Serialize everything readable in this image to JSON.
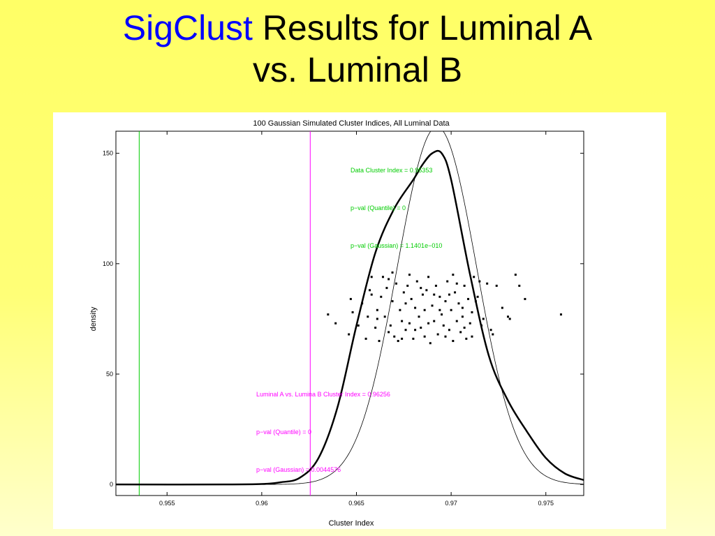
{
  "slide": {
    "title_accent": "SigClust",
    "title_rest_line1": " Results for Luminal A",
    "title_line2": "vs. Luminal B"
  },
  "colors": {
    "title_accent": "#0000ff",
    "data_annotation": "#00cc00",
    "luminal_annotation": "#ff00ff",
    "curve": "#000000"
  },
  "chart_data": {
    "type": "line",
    "title": "100 Gaussian Simulated Cluster Indices, All Luminal Data",
    "xlabel": "Cluster Index",
    "ylabel": "density",
    "xlim": [
      0.9523,
      0.977
    ],
    "ylim": [
      -5,
      160
    ],
    "xticks": [
      0.955,
      0.96,
      0.965,
      0.97,
      0.975
    ],
    "xtick_labels": [
      "0.955",
      "0.96",
      "0.965",
      "0.97",
      "0.975"
    ],
    "yticks": [
      0,
      50,
      100,
      150
    ],
    "ytick_labels": [
      "0",
      "50",
      "100",
      "150"
    ],
    "grid": false,
    "series": [
      {
        "kind": "kde",
        "x": [
          0.9523,
          0.958,
          0.96,
          0.961,
          0.962,
          0.963,
          0.964,
          0.965,
          0.966,
          0.967,
          0.968,
          0.9685,
          0.969,
          0.9695,
          0.97,
          0.971,
          0.972,
          0.973,
          0.974,
          0.975,
          0.976,
          0.977
        ],
        "y": [
          0,
          0,
          0.2,
          1,
          3,
          12,
          35,
          72,
          105,
          125,
          138,
          145,
          150,
          150,
          138,
          95,
          58,
          38,
          24,
          12,
          5,
          2
        ]
      },
      {
        "kind": "gaussian_fit",
        "mean": 0.96925,
        "sd": 0.0021,
        "peak": 162
      }
    ],
    "vlines": [
      {
        "x": 0.95353,
        "color": "#00cc00"
      },
      {
        "x": 0.96256,
        "color": "#ff00ff"
      }
    ],
    "points": [
      {
        "x": 0.9635,
        "y": 77
      },
      {
        "x": 0.9639,
        "y": 73
      },
      {
        "x": 0.9646,
        "y": 68
      },
      {
        "x": 0.9647,
        "y": 84
      },
      {
        "x": 0.9651,
        "y": 72
      },
      {
        "x": 0.9653,
        "y": 82
      },
      {
        "x": 0.9655,
        "y": 66
      },
      {
        "x": 0.9656,
        "y": 76
      },
      {
        "x": 0.9657,
        "y": 88
      },
      {
        "x": 0.9658,
        "y": 86
      },
      {
        "x": 0.966,
        "y": 71
      },
      {
        "x": 0.9661,
        "y": 79
      },
      {
        "x": 0.9662,
        "y": 65
      },
      {
        "x": 0.9664,
        "y": 94
      },
      {
        "x": 0.9665,
        "y": 76
      },
      {
        "x": 0.9666,
        "y": 89
      },
      {
        "x": 0.9667,
        "y": 93
      },
      {
        "x": 0.9668,
        "y": 72
      },
      {
        "x": 0.9669,
        "y": 83
      },
      {
        "x": 0.967,
        "y": 67
      },
      {
        "x": 0.9671,
        "y": 91
      },
      {
        "x": 0.9672,
        "y": 65
      },
      {
        "x": 0.9673,
        "y": 79
      },
      {
        "x": 0.9674,
        "y": 74
      },
      {
        "x": 0.9675,
        "y": 87
      },
      {
        "x": 0.9676,
        "y": 70
      },
      {
        "x": 0.9677,
        "y": 90
      },
      {
        "x": 0.9678,
        "y": 73
      },
      {
        "x": 0.9679,
        "y": 84
      },
      {
        "x": 0.968,
        "y": 66
      },
      {
        "x": 0.9681,
        "y": 80
      },
      {
        "x": 0.9682,
        "y": 92
      },
      {
        "x": 0.9683,
        "y": 76
      },
      {
        "x": 0.9684,
        "y": 71
      },
      {
        "x": 0.9685,
        "y": 86
      },
      {
        "x": 0.9686,
        "y": 79
      },
      {
        "x": 0.9687,
        "y": 88
      },
      {
        "x": 0.9688,
        "y": 94
      },
      {
        "x": 0.9689,
        "y": 64
      },
      {
        "x": 0.969,
        "y": 81
      },
      {
        "x": 0.9691,
        "y": 74
      },
      {
        "x": 0.9692,
        "y": 90
      },
      {
        "x": 0.9693,
        "y": 68
      },
      {
        "x": 0.9694,
        "y": 85
      },
      {
        "x": 0.9695,
        "y": 77
      },
      {
        "x": 0.9696,
        "y": 72
      },
      {
        "x": 0.9697,
        "y": 83
      },
      {
        "x": 0.9698,
        "y": 92
      },
      {
        "x": 0.9699,
        "y": 70
      },
      {
        "x": 0.97,
        "y": 79
      },
      {
        "x": 0.9701,
        "y": 65
      },
      {
        "x": 0.9702,
        "y": 87
      },
      {
        "x": 0.9703,
        "y": 74
      },
      {
        "x": 0.9704,
        "y": 82
      },
      {
        "x": 0.9705,
        "y": 69
      },
      {
        "x": 0.9706,
        "y": 76
      },
      {
        "x": 0.9707,
        "y": 90
      },
      {
        "x": 0.9708,
        "y": 66
      },
      {
        "x": 0.9709,
        "y": 84
      },
      {
        "x": 0.971,
        "y": 73
      },
      {
        "x": 0.9711,
        "y": 78
      },
      {
        "x": 0.9712,
        "y": 94
      },
      {
        "x": 0.9714,
        "y": 85
      },
      {
        "x": 0.9715,
        "y": 92
      },
      {
        "x": 0.9717,
        "y": 75
      },
      {
        "x": 0.9719,
        "y": 91
      },
      {
        "x": 0.9721,
        "y": 70
      },
      {
        "x": 0.9722,
        "y": 68
      },
      {
        "x": 0.9724,
        "y": 90
      },
      {
        "x": 0.9727,
        "y": 80
      },
      {
        "x": 0.973,
        "y": 76
      },
      {
        "x": 0.9731,
        "y": 75
      },
      {
        "x": 0.9734,
        "y": 95
      },
      {
        "x": 0.9736,
        "y": 90
      },
      {
        "x": 0.9739,
        "y": 84
      },
      {
        "x": 0.9758,
        "y": 77
      },
      {
        "x": 0.9648,
        "y": 78
      },
      {
        "x": 0.9663,
        "y": 85
      },
      {
        "x": 0.9669,
        "y": 96
      },
      {
        "x": 0.9678,
        "y": 95
      },
      {
        "x": 0.9686,
        "y": 67
      },
      {
        "x": 0.9697,
        "y": 67
      },
      {
        "x": 0.9703,
        "y": 91
      },
      {
        "x": 0.9713,
        "y": 83
      },
      {
        "x": 0.9658,
        "y": 94
      },
      {
        "x": 0.9674,
        "y": 66
      },
      {
        "x": 0.9691,
        "y": 86
      },
      {
        "x": 0.9706,
        "y": 80
      },
      {
        "x": 0.9716,
        "y": 72
      },
      {
        "x": 0.9661,
        "y": 75
      },
      {
        "x": 0.9684,
        "y": 89
      },
      {
        "x": 0.9699,
        "y": 86
      },
      {
        "x": 0.9711,
        "y": 67
      },
      {
        "x": 0.9676,
        "y": 82
      },
      {
        "x": 0.9694,
        "y": 79
      },
      {
        "x": 0.9707,
        "y": 71
      },
      {
        "x": 0.9688,
        "y": 73
      },
      {
        "x": 0.9667,
        "y": 69
      },
      {
        "x": 0.9701,
        "y": 95
      },
      {
        "x": 0.9681,
        "y": 70
      }
    ],
    "annotations": [
      {
        "group": "data",
        "color": "#00cc00",
        "text": "Data Cluster Index = 0.95353"
      },
      {
        "group": "data",
        "color": "#00cc00",
        "text": "p−val (Quantile) = 0"
      },
      {
        "group": "data",
        "color": "#00cc00",
        "text": "p−val (Gaussian) = 1.1401e−010"
      },
      {
        "group": "luminal",
        "color": "#ff00ff",
        "text": "Luminal A vs. Lumina B Cluster Index = 0.96256"
      },
      {
        "group": "luminal",
        "color": "#ff00ff",
        "text": "p−val (Quantile) = 0"
      },
      {
        "group": "luminal",
        "color": "#ff00ff",
        "text": "p−val (Gaussian) = 0.0044576"
      }
    ]
  }
}
